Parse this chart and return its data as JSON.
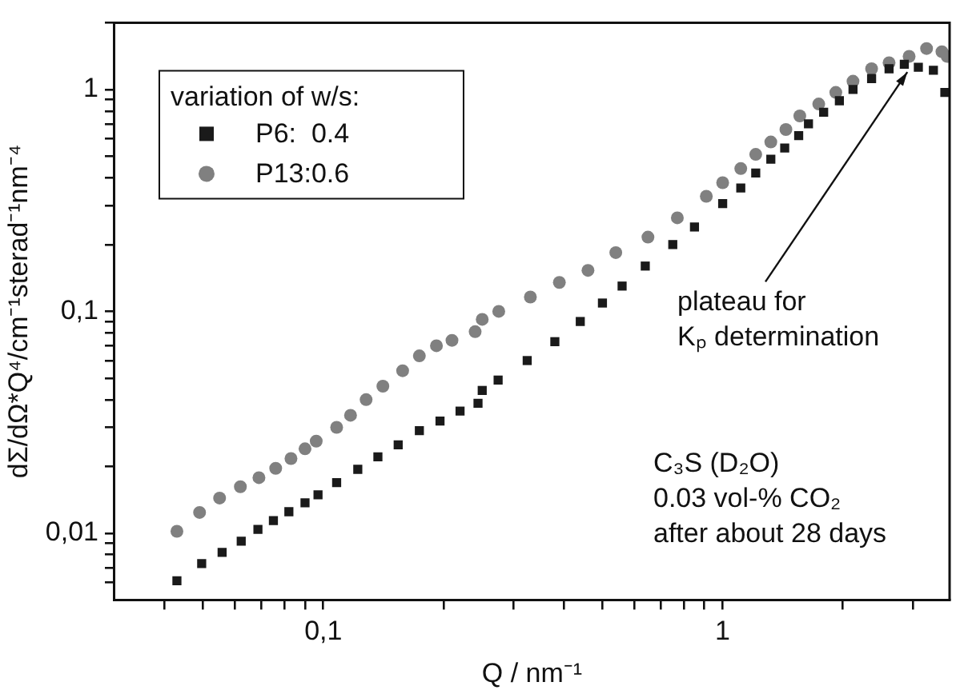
{
  "chart_data": {
    "type": "scatter",
    "xlabel": "Q / nm⁻¹",
    "ylabel": "dΣ/dΩ*Q⁴/cm⁻¹sterad⁻¹nm⁻⁴",
    "legend_title": "variation of w/s:",
    "legend": "top left",
    "log": "xy",
    "grid": false,
    "xlim": [
      0.03,
      3.7
    ],
    "ylim": [
      0.005,
      2
    ],
    "xticks": [
      {
        "value": 0.04,
        "label": null
      },
      {
        "value": 0.05,
        "label": null
      },
      {
        "value": 0.06,
        "label": null
      },
      {
        "value": 0.07,
        "label": null
      },
      {
        "value": 0.08,
        "label": null
      },
      {
        "value": 0.09,
        "label": null
      },
      {
        "value": 0.1,
        "label": "0,1"
      },
      {
        "value": 0.2,
        "label": null
      },
      {
        "value": 0.3,
        "label": null
      },
      {
        "value": 0.4,
        "label": null
      },
      {
        "value": 0.5,
        "label": null
      },
      {
        "value": 0.6,
        "label": null
      },
      {
        "value": 0.7,
        "label": null
      },
      {
        "value": 0.8,
        "label": null
      },
      {
        "value": 0.9,
        "label": null
      },
      1,
      {
        "value": 2,
        "label": null
      },
      {
        "value": 3,
        "label": null
      }
    ],
    "yticks": [
      {
        "value": 0.006,
        "label": null
      },
      {
        "value": 0.007,
        "label": null
      },
      {
        "value": 0.008,
        "label": null
      },
      {
        "value": 0.009,
        "label": null
      },
      {
        "value": 0.01,
        "label": "0,01"
      },
      {
        "value": 0.02,
        "label": null
      },
      {
        "value": 0.03,
        "label": null
      },
      {
        "value": 0.04,
        "label": null
      },
      {
        "value": 0.05,
        "label": null
      },
      {
        "value": 0.06,
        "label": null
      },
      {
        "value": 0.07,
        "label": null
      },
      {
        "value": 0.08,
        "label": null
      },
      {
        "value": 0.09,
        "label": null
      },
      {
        "value": 0.1,
        "label": "0,1"
      },
      {
        "value": 0.2,
        "label": null
      },
      {
        "value": 0.3,
        "label": null
      },
      {
        "value": 0.4,
        "label": null
      },
      {
        "value": 0.5,
        "label": null
      },
      {
        "value": 0.6,
        "label": null
      },
      {
        "value": 0.7,
        "label": null
      },
      {
        "value": 0.8,
        "label": null
      },
      {
        "value": 0.9,
        "label": null
      },
      1,
      {
        "value": 2,
        "label": null
      }
    ],
    "annotations": [
      {
        "text": "plateau for\nKₚ determination",
        "x": 2.9,
        "y": 1.28
      },
      "C₃S (D₂O)\n0.03 vol-% CO₂\nafter about 28 days"
    ],
    "series": [
      {
        "name": "P6:  0.4",
        "color": "#1a1a1a",
        "marker": "square",
        "x": [
          0.043,
          0.0496,
          0.0558,
          0.0623,
          0.0686,
          0.075,
          0.082,
          0.09,
          0.097,
          0.108,
          0.122,
          0.137,
          0.154,
          0.174,
          0.196,
          0.22,
          0.244,
          0.25,
          0.274,
          0.324,
          0.38,
          0.44,
          0.5,
          0.56,
          0.64,
          0.75,
          0.85,
          1.0,
          1.11,
          1.21,
          1.32,
          1.43,
          1.55,
          1.64,
          1.79,
          1.96,
          2.12,
          2.36,
          2.61,
          2.85,
          3.09,
          3.37,
          3.6
        ],
        "values": [
          0.0061,
          0.0073,
          0.0082,
          0.0092,
          0.0104,
          0.0114,
          0.0125,
          0.0137,
          0.0149,
          0.0169,
          0.0194,
          0.0221,
          0.025,
          0.029,
          0.032,
          0.0355,
          0.0385,
          0.044,
          0.049,
          0.06,
          0.073,
          0.09,
          0.109,
          0.13,
          0.16,
          0.2,
          0.24,
          0.306,
          0.36,
          0.42,
          0.485,
          0.545,
          0.62,
          0.7,
          0.79,
          0.89,
          1.0,
          1.12,
          1.24,
          1.3,
          1.26,
          1.22,
          0.97
        ]
      },
      {
        "name": "P13:0.6",
        "color": "#808080",
        "marker": "circle",
        "x": [
          0.043,
          0.049,
          0.055,
          0.062,
          0.069,
          0.076,
          0.083,
          0.09,
          0.096,
          0.108,
          0.117,
          0.128,
          0.141,
          0.158,
          0.174,
          0.192,
          0.21,
          0.24,
          0.25,
          0.275,
          0.33,
          0.39,
          0.46,
          0.54,
          0.65,
          0.77,
          0.91,
          1.0,
          1.11,
          1.21,
          1.32,
          1.44,
          1.56,
          1.74,
          1.92,
          2.12,
          2.36,
          2.61,
          2.93,
          3.24,
          3.54,
          3.65
        ],
        "values": [
          0.0102,
          0.0124,
          0.0144,
          0.0162,
          0.0178,
          0.0196,
          0.0217,
          0.024,
          0.026,
          0.03,
          0.034,
          0.04,
          0.046,
          0.054,
          0.063,
          0.07,
          0.074,
          0.081,
          0.092,
          0.1,
          0.116,
          0.135,
          0.153,
          0.184,
          0.216,
          0.264,
          0.33,
          0.38,
          0.44,
          0.51,
          0.58,
          0.66,
          0.76,
          0.86,
          0.97,
          1.09,
          1.24,
          1.32,
          1.41,
          1.53,
          1.48,
          1.41
        ]
      }
    ]
  }
}
